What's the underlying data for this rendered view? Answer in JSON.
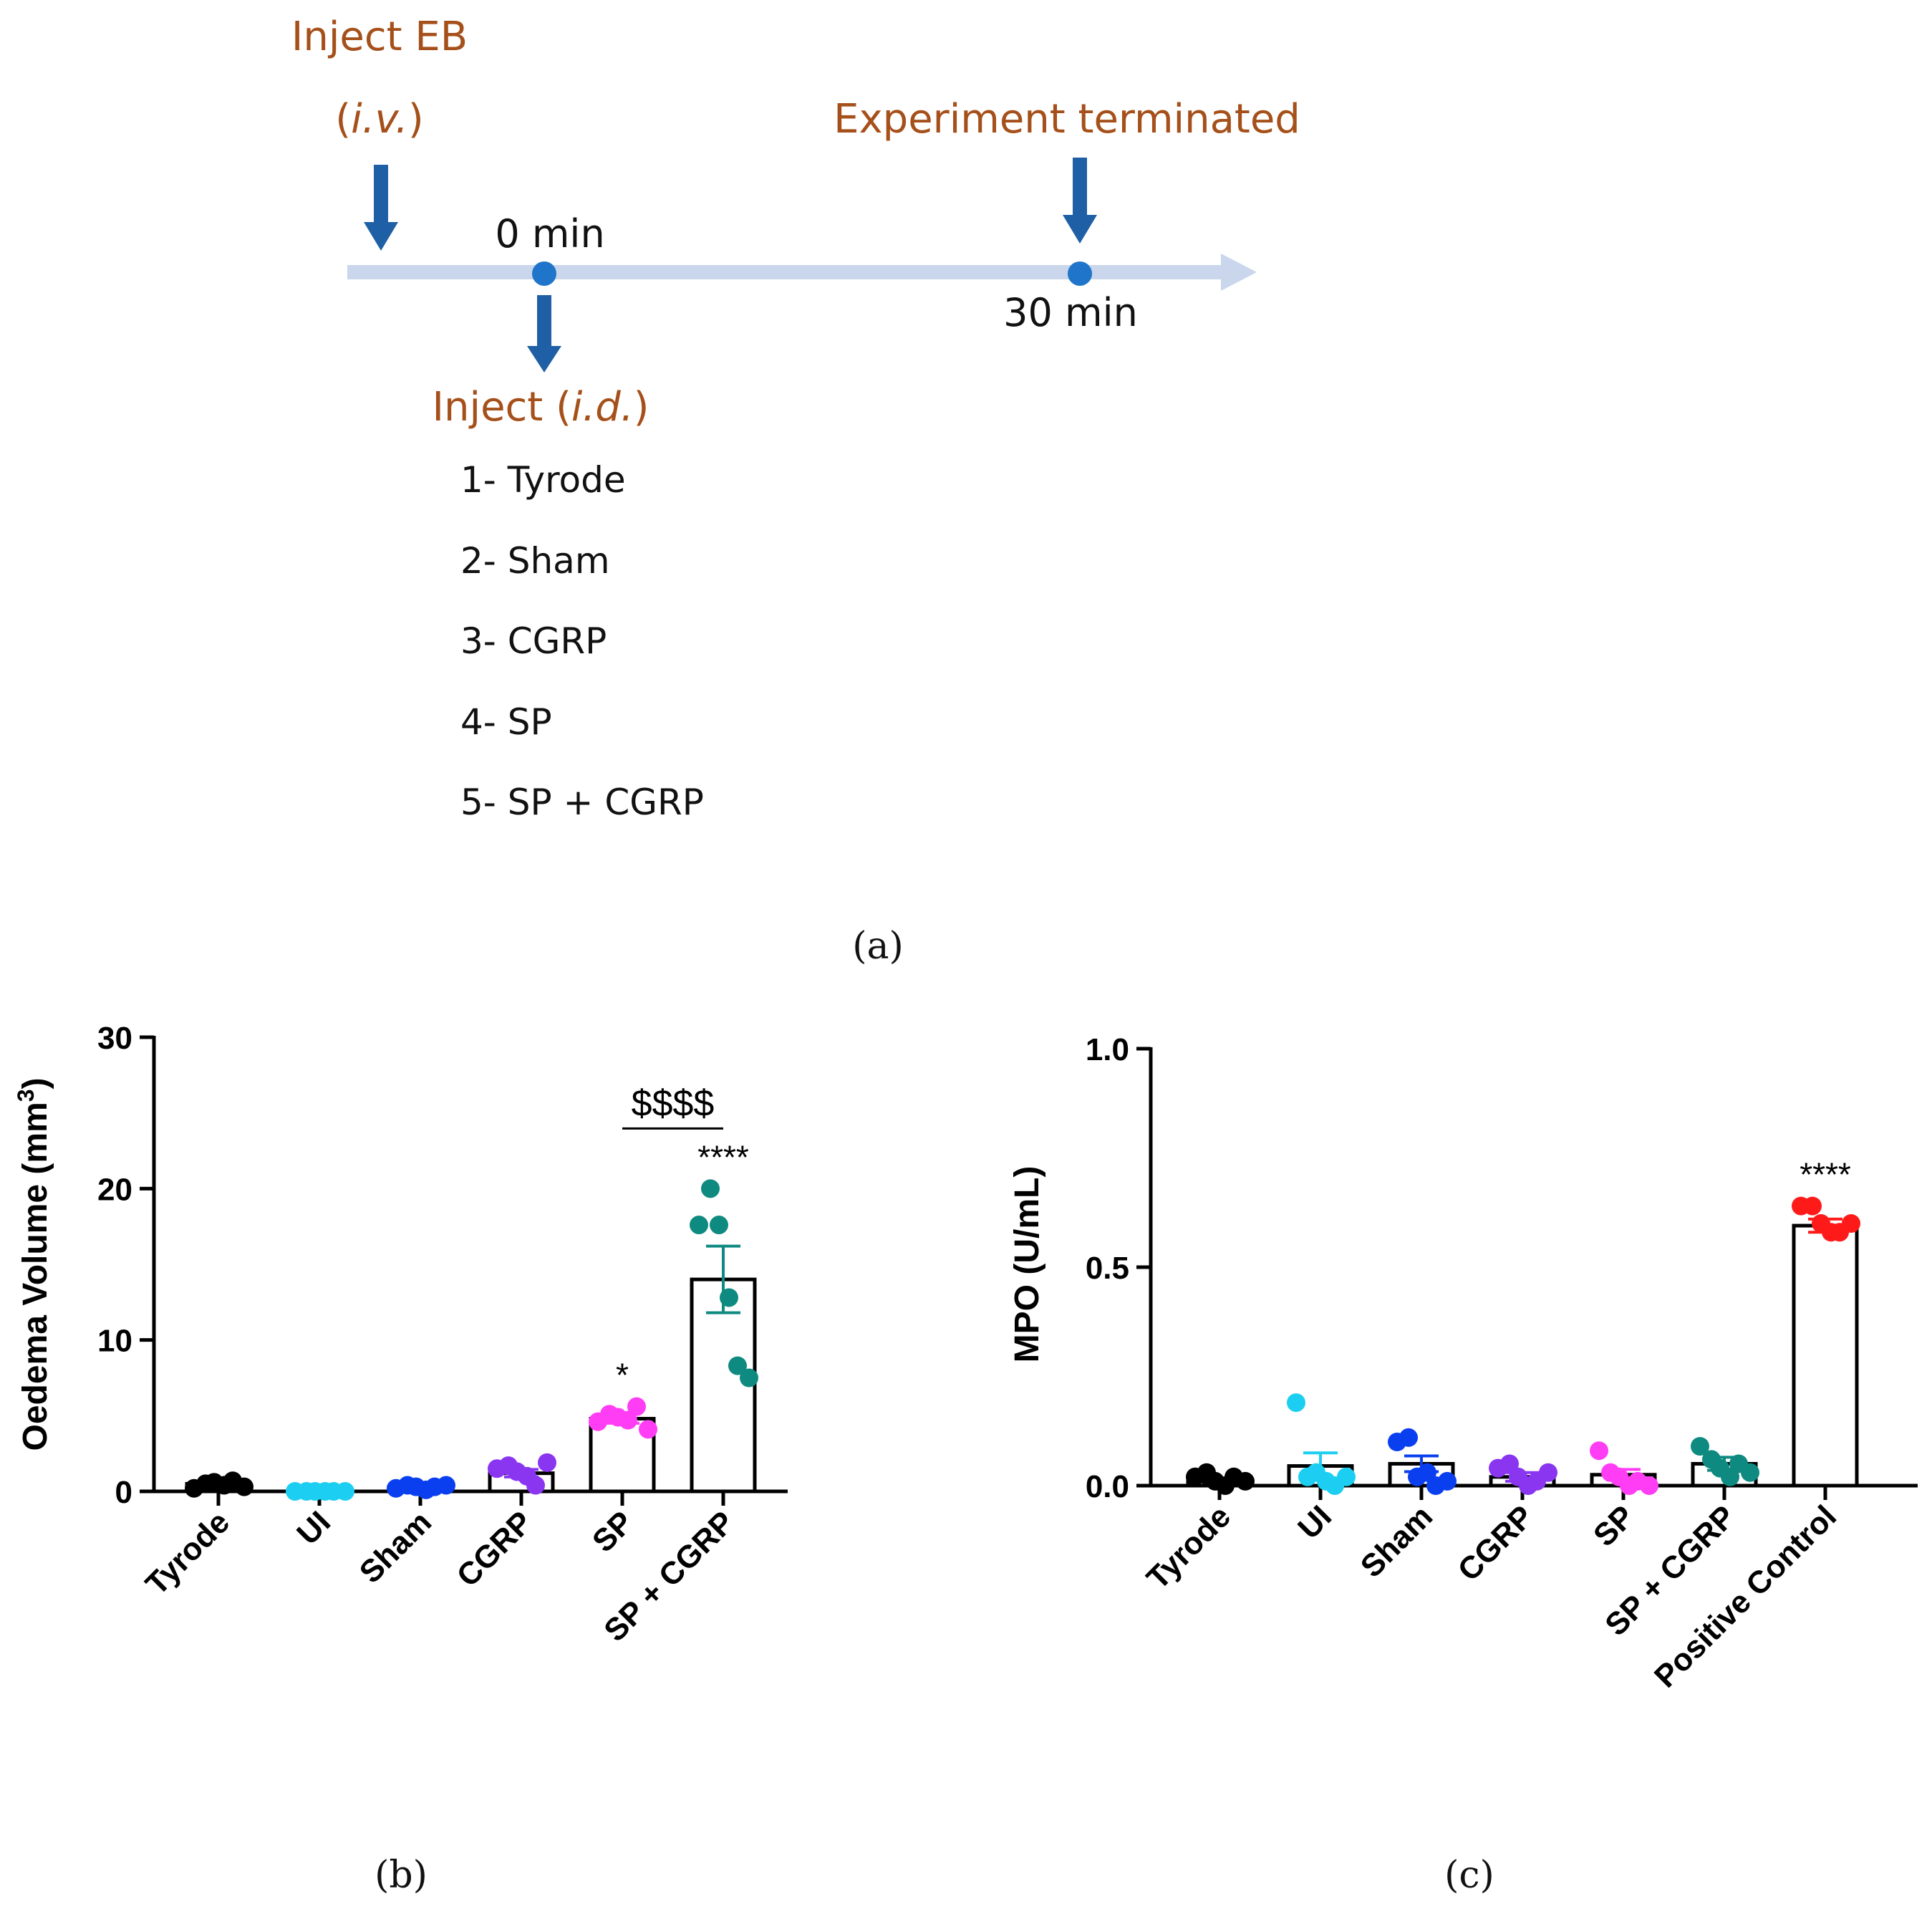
{
  "timeline": {
    "inject_eb_line1": "Inject EB",
    "inject_eb_route_open": "(",
    "inject_eb_route_italic": "i.v.",
    "inject_eb_route_close": ")",
    "experiment_terminated": "Experiment terminated",
    "time_start": "0 min",
    "time_end": "30 min",
    "inject_id_prefix": "Inject (",
    "inject_id_italic": "i.d.",
    "inject_id_suffix": ")",
    "treatments": [
      "1- Tyrode",
      "2- Sham",
      "3- CGRP",
      "4- SP",
      "5- SP + CGRP"
    ],
    "label_color": "#a5501a",
    "arrow_color": "#1f5fa5",
    "axis_color": "#c9d6ec",
    "dot_color": "#1f75c9"
  },
  "panel_labels": {
    "a": "(a)",
    "b": "(b)",
    "c": "(c)"
  },
  "chart_data": [
    {
      "id": "b",
      "type": "bar",
      "title": "",
      "xlabel": "",
      "ylabel_main": "Oedema Volume (mm",
      "ylabel_sup": "3",
      "ylabel_close": ")",
      "ylim": [
        0,
        30
      ],
      "yticks": [
        0,
        10,
        20,
        30
      ],
      "ytick_labels": [
        "0",
        "10",
        "20",
        "30"
      ],
      "categories": [
        "Tyrode",
        "UI",
        "Sham",
        "CGRP",
        "SP",
        "SP + CGRP"
      ],
      "values": [
        0.5,
        0.0,
        0.3,
        1.2,
        4.8,
        14.0
      ],
      "sem": [
        0.1,
        0.0,
        0.1,
        0.25,
        0.3,
        2.2
      ],
      "colors": [
        "#000000",
        "#1ccff2",
        "#0a3ff0",
        "#8a35f0",
        "#ff3df5",
        "#0f8a80"
      ],
      "points": [
        [
          0.2,
          0.5,
          0.6,
          0.4,
          0.7,
          0.3
        ],
        [
          0.0,
          0.0,
          0.0,
          0.0,
          0.0,
          0.0
        ],
        [
          0.2,
          0.4,
          0.3,
          0.1,
          0.3,
          0.4
        ],
        [
          1.5,
          1.7,
          1.3,
          1.0,
          0.4,
          1.9
        ],
        [
          4.6,
          5.1,
          4.9,
          4.7,
          5.6,
          4.1
        ],
        [
          17.6,
          20.0,
          17.6,
          12.8,
          8.3,
          7.5
        ]
      ],
      "annotations": [
        {
          "category": 4,
          "text": "*"
        },
        {
          "category": 5,
          "text": "****"
        }
      ],
      "bracket": {
        "from": 4,
        "to": 5,
        "text": "$$$$"
      }
    },
    {
      "id": "c",
      "type": "bar",
      "title": "",
      "xlabel": "",
      "ylabel": "MPO (U/mL)",
      "ylim": [
        0,
        1.0
      ],
      "yticks": [
        0,
        0.5,
        1.0
      ],
      "ytick_labels": [
        "0.0",
        "0.5",
        "1.0"
      ],
      "categories": [
        "Tyrode",
        "UI",
        "Sham",
        "CGRP",
        "SP",
        "SP + CGRP",
        "Positive Control"
      ],
      "values": [
        0.01,
        0.045,
        0.05,
        0.02,
        0.025,
        0.05,
        0.595
      ],
      "sem": [
        0.005,
        0.03,
        0.018,
        0.01,
        0.012,
        0.015,
        0.015
      ],
      "colors": [
        "#000000",
        "#1ccff2",
        "#0a3ff0",
        "#8a35f0",
        "#ff3df5",
        "#0f8a80",
        "#ff1a1a"
      ],
      "points": [
        [
          0.02,
          0.03,
          0.01,
          0.0,
          0.02,
          0.01
        ],
        [
          0.19,
          0.02,
          0.03,
          0.01,
          0.0,
          0.02
        ],
        [
          0.1,
          0.11,
          0.02,
          0.03,
          0.0,
          0.01
        ],
        [
          0.04,
          0.05,
          0.02,
          0.0,
          0.01,
          0.03
        ],
        [
          0.08,
          0.03,
          0.02,
          0.0,
          0.01,
          0.0
        ],
        [
          0.09,
          0.06,
          0.04,
          0.02,
          0.05,
          0.03
        ],
        [
          0.64,
          0.64,
          0.6,
          0.58,
          0.58,
          0.6
        ]
      ],
      "annotations": [
        {
          "category": 6,
          "text": "****"
        }
      ]
    }
  ]
}
